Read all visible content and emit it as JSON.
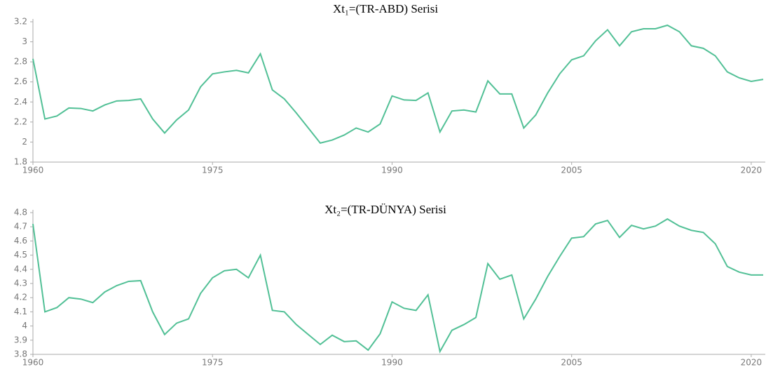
{
  "chart_data": [
    {
      "type": "line",
      "title": "Xt₁=(TR-ABD) Serisi",
      "x": [
        1960,
        1961,
        1962,
        1963,
        1964,
        1965,
        1966,
        1967,
        1968,
        1969,
        1970,
        1971,
        1972,
        1973,
        1974,
        1975,
        1976,
        1977,
        1978,
        1979,
        1980,
        1981,
        1982,
        1983,
        1984,
        1985,
        1986,
        1987,
        1988,
        1989,
        1990,
        1991,
        1992,
        1993,
        1994,
        1995,
        1996,
        1997,
        1998,
        1999,
        2000,
        2001,
        2002,
        2003,
        2004,
        2005,
        2006,
        2007,
        2008,
        2009,
        2010,
        2011,
        2012,
        2013,
        2014,
        2015,
        2016,
        2017,
        2018,
        2019,
        2020,
        2021
      ],
      "series": [
        {
          "color": "#52c096",
          "values": [
            2.83,
            2.23,
            2.26,
            2.34,
            2.335,
            2.31,
            2.37,
            2.41,
            2.415,
            2.43,
            2.23,
            2.09,
            2.22,
            2.32,
            2.55,
            2.68,
            2.7,
            2.715,
            2.69,
            2.88,
            2.52,
            2.43,
            2.29,
            2.14,
            1.99,
            2.02,
            2.07,
            2.14,
            2.1,
            2.18,
            2.46,
            2.42,
            2.415,
            2.49,
            2.1,
            2.31,
            2.32,
            2.3,
            2.61,
            2.48,
            2.48,
            2.14,
            2.27,
            2.49,
            2.68,
            2.82,
            2.86,
            3.01,
            3.12,
            2.96,
            3.1,
            3.13,
            3.13,
            3.165,
            3.1,
            2.96,
            2.935,
            2.86,
            2.7,
            2.64,
            2.605,
            2.625
          ]
        }
      ],
      "xlim": [
        1960,
        2021
      ],
      "xticks": [
        1960,
        1975,
        1990,
        2005,
        2020
      ],
      "ylim": [
        1.8,
        3.2
      ],
      "yticks": [
        1.8,
        2,
        2.2,
        2.4,
        2.6,
        2.8,
        3,
        3.2
      ]
    },
    {
      "type": "line",
      "title": "Xt₂=(TR-DÜNYA) Serisi",
      "x": [
        1960,
        1961,
        1962,
        1963,
        1964,
        1965,
        1966,
        1967,
        1968,
        1969,
        1970,
        1971,
        1972,
        1973,
        1974,
        1975,
        1976,
        1977,
        1978,
        1979,
        1980,
        1981,
        1982,
        1983,
        1984,
        1985,
        1986,
        1987,
        1988,
        1989,
        1990,
        1991,
        1992,
        1993,
        1994,
        1995,
        1996,
        1997,
        1998,
        1999,
        2000,
        2001,
        2002,
        2003,
        2004,
        2005,
        2006,
        2007,
        2008,
        2009,
        2010,
        2011,
        2012,
        2013,
        2014,
        2015,
        2016,
        2017,
        2018,
        2019,
        2020,
        2021
      ],
      "series": [
        {
          "color": "#52c096",
          "values": [
            4.72,
            4.1,
            4.13,
            4.2,
            4.19,
            4.165,
            4.24,
            4.285,
            4.315,
            4.32,
            4.1,
            3.94,
            4.02,
            4.05,
            4.23,
            4.34,
            4.39,
            4.4,
            4.34,
            4.5,
            4.11,
            4.1,
            4.01,
            3.94,
            3.87,
            3.935,
            3.89,
            3.895,
            3.83,
            3.945,
            4.17,
            4.125,
            4.11,
            4.22,
            3.82,
            3.97,
            4.01,
            4.06,
            4.44,
            4.33,
            4.36,
            4.05,
            4.19,
            4.35,
            4.49,
            4.62,
            4.63,
            4.72,
            4.745,
            4.625,
            4.71,
            4.685,
            4.705,
            4.755,
            4.705,
            4.675,
            4.66,
            4.58,
            4.42,
            4.38,
            4.36,
            4.36
          ]
        }
      ],
      "xlim": [
        1960,
        2021
      ],
      "xticks": [
        1960,
        1975,
        1990,
        2005,
        2020
      ],
      "ylim": [
        3.8,
        4.8
      ],
      "yticks": [
        3.8,
        3.9,
        4,
        4.1,
        4.2,
        4.3,
        4.4,
        4.5,
        4.6,
        4.7,
        4.8
      ]
    }
  ]
}
